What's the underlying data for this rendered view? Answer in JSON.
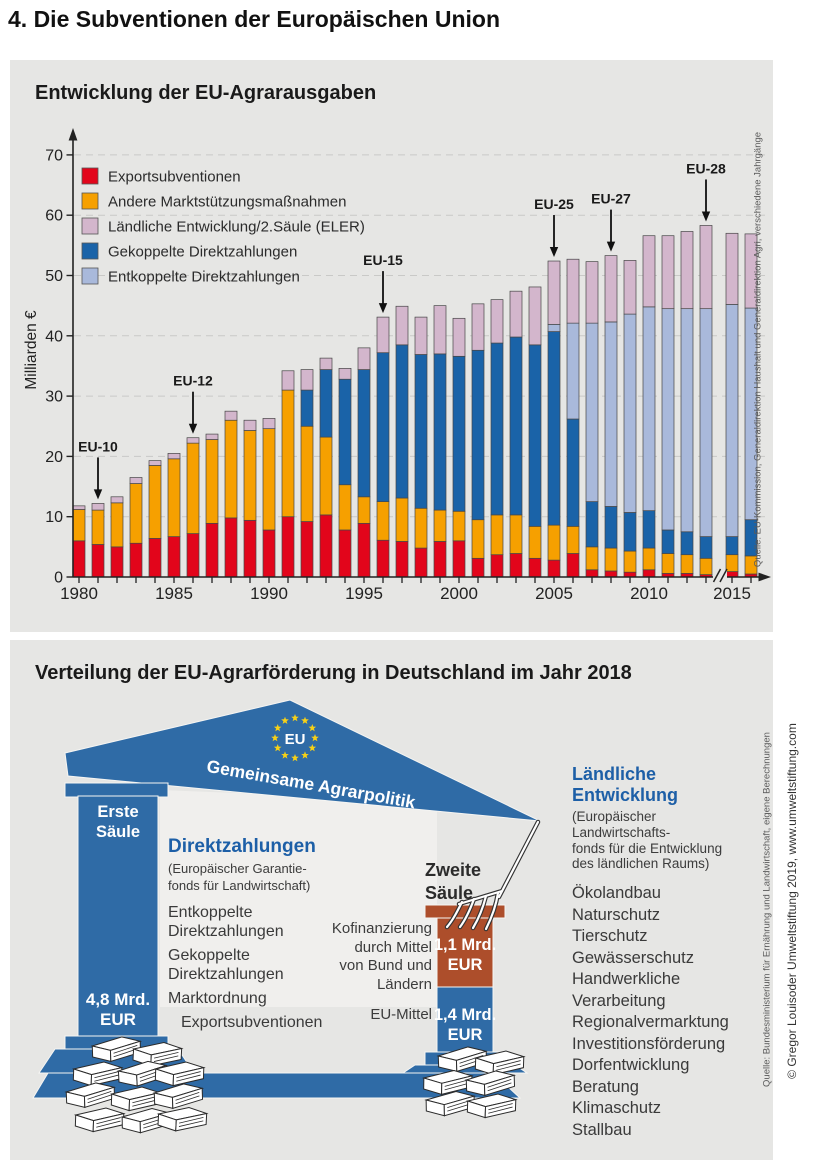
{
  "page_heading": "4. Die Subventionen der Europäischen Union",
  "chart_panel": {
    "title": "Entwicklung der EU-Agrarausgaben",
    "source": "Quelle: EU-Kommission, Generaldirektion Haushalt und Generaldirektion Agri, verschiedene Jahrgänge"
  },
  "chart_data": {
    "type": "bar",
    "stacked": true,
    "title": "Entwicklung der EU-Agrarausgaben",
    "xlabel": "",
    "ylabel": "Milliarden €",
    "ylim": [
      0,
      70
    ],
    "yticks": [
      0,
      10,
      20,
      30,
      40,
      50,
      60,
      70
    ],
    "xtick_labels": [
      "1980",
      "1985",
      "1990",
      "1995",
      "2000",
      "2005",
      "2010",
      "2015"
    ],
    "grid": "horizontal dashed",
    "legend_position": "upper left inside",
    "axis_break_after_year": 2013,
    "years": [
      1980,
      1981,
      1982,
      1983,
      1984,
      1985,
      1986,
      1987,
      1988,
      1989,
      1990,
      1991,
      1992,
      1993,
      1994,
      1995,
      1996,
      1997,
      1998,
      1999,
      2000,
      2001,
      2002,
      2003,
      2004,
      2005,
      2006,
      2007,
      2008,
      2009,
      2010,
      2011,
      2012,
      2013,
      2015,
      2016
    ],
    "series": [
      {
        "name": "Exportsubventionen",
        "color": "#e2051b",
        "values": [
          6.0,
          5.4,
          5.0,
          5.6,
          6.4,
          6.7,
          7.2,
          8.9,
          9.8,
          9.4,
          7.8,
          10.0,
          9.2,
          10.3,
          7.8,
          8.9,
          6.1,
          5.9,
          4.8,
          5.9,
          6.0,
          3.1,
          3.7,
          3.9,
          3.1,
          2.8,
          3.9,
          1.2,
          1.0,
          0.8,
          1.2,
          0.6,
          0.6,
          0.4,
          0.9,
          0.5
        ]
      },
      {
        "name": "Andere Marktstützungsmaßnahmen",
        "color": "#f6a000",
        "values": [
          5.2,
          5.7,
          7.3,
          9.9,
          12.1,
          12.9,
          15.0,
          13.9,
          16.2,
          14.9,
          16.8,
          21.0,
          15.8,
          12.9,
          7.5,
          4.4,
          6.4,
          7.2,
          6.6,
          5.2,
          4.9,
          6.4,
          6.6,
          6.4,
          5.3,
          5.8,
          4.5,
          3.8,
          3.8,
          3.5,
          3.6,
          3.3,
          3.1,
          2.7,
          2.8,
          3.0
        ]
      },
      {
        "name": "Gekoppelte Direktzahlungen",
        "color": "#1a63a8",
        "values": [
          0,
          0,
          0,
          0,
          0,
          0,
          0,
          0,
          0,
          0,
          0,
          0,
          6.0,
          11.2,
          17.5,
          21.1,
          24.7,
          25.4,
          25.5,
          25.9,
          25.7,
          28.1,
          28.5,
          29.5,
          30.1,
          32.1,
          17.8,
          7.5,
          6.9,
          6.4,
          6.2,
          3.9,
          3.8,
          3.6,
          3.0,
          6.0
        ]
      },
      {
        "name": "Entkoppelte Direktzahlungen",
        "color": "#a9b9db",
        "values": [
          0,
          0,
          0,
          0,
          0,
          0,
          0,
          0,
          0,
          0,
          0,
          0,
          0,
          0,
          0,
          0,
          0,
          0,
          0,
          0,
          0,
          0,
          0,
          0,
          0,
          1.2,
          15.9,
          29.6,
          30.6,
          32.9,
          33.8,
          36.7,
          37.0,
          37.8,
          38.5,
          35.1
        ]
      },
      {
        "name": "Ländliche Entwicklung/2.Säule (ELER)",
        "color": "#d3b6cc",
        "values": [
          0.6,
          1.1,
          1.0,
          1.0,
          0.8,
          0.9,
          0.9,
          0.9,
          1.5,
          1.7,
          1.7,
          3.2,
          3.4,
          1.9,
          1.8,
          3.6,
          5.9,
          6.4,
          6.2,
          8.0,
          6.3,
          7.7,
          7.2,
          7.6,
          9.6,
          10.5,
          10.6,
          10.2,
          11.0,
          8.9,
          11.8,
          12.1,
          12.8,
          13.8,
          11.8,
          12.3
        ]
      }
    ],
    "legend_order": [
      0,
      1,
      4,
      2,
      3
    ],
    "annotations": [
      {
        "label": "EU-10",
        "year": 1981
      },
      {
        "label": "EU-12",
        "year": 1986
      },
      {
        "label": "EU-15",
        "year": 1996
      },
      {
        "label": "EU-25",
        "year": 2005
      },
      {
        "label": "EU-27",
        "year": 2008
      },
      {
        "label": "EU-28",
        "year": 2013
      }
    ]
  },
  "diagram_panel": {
    "title": "Verteilung der EU-Agrarförderung in Deutschland im Jahr 2018",
    "colors": {
      "structure_blue": "#2f6ba6",
      "cofinance_brown": "#ad4e2b"
    },
    "roof": {
      "eu_label": "EU",
      "banner": "Gemeinsame Agrarpolitik"
    },
    "first_pillar": {
      "name_lines": [
        "Erste",
        "Säule"
      ],
      "amount_lines": [
        "4,8 Mrd.",
        "EUR"
      ]
    },
    "second_pillar": {
      "name_lines": [
        "Zweite",
        "Säule"
      ],
      "cofinance_amount_lines": [
        "1,1 Mrd.",
        "EUR"
      ],
      "eu_amount_lines": [
        "1,4 Mrd.",
        "EUR"
      ]
    },
    "direct_payments": {
      "heading": "Direktzahlungen",
      "subheading_lines": [
        "(Europäischer Garantie-",
        "fonds für Landwirtschaft)"
      ],
      "items": [
        [
          "Entkoppelte",
          "Direktzahlungen"
        ],
        [
          "Gekoppelte",
          "Direktzahlungen"
        ],
        [
          "Marktordnung"
        ],
        [
          "Exportsubventionen"
        ]
      ]
    },
    "cofinance_label_lines": [
      "Kofinanzierung",
      "durch Mittel",
      "von Bund und",
      "Ländern"
    ],
    "eu_funds_label": "EU-Mittel",
    "rural_development": {
      "heading": "Ländliche Entwicklung",
      "subheading_lines": [
        "(Europäischer Landwirtschafts-",
        "fonds für die Entwicklung",
        "des ländlichen Raums)"
      ],
      "items": [
        "Ökolandbau",
        "Naturschutz",
        "Tierschutz",
        "Gewässerschutz",
        "Handwerkliche Verarbeitung",
        "Regionalvermarktung",
        "Investitionsförderung",
        "Dorfentwicklung",
        "Beratung",
        "Klimaschutz",
        "Stallbau"
      ]
    },
    "source": "Quelle: Bundesministerium für Ernährung und Landwirtschaft, eigene Berechnungen",
    "copyright": "© Gregor Louisoder Umweltstiftung 2019, www.umweltstiftung.com"
  }
}
